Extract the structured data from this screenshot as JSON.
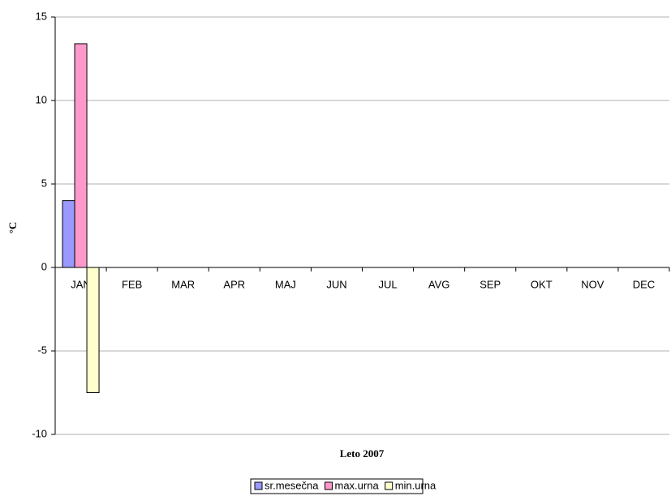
{
  "chart_data": {
    "type": "bar",
    "x_label": "Leto 2007",
    "y_label": "°C",
    "categories": [
      "JAN",
      "FEB",
      "MAR",
      "APR",
      "MAJ",
      "JUN",
      "JUL",
      "AVG",
      "SEP",
      "OKT",
      "NOV",
      "DEC"
    ],
    "series": [
      {
        "name": "sr.mesečna",
        "color": "#9999ff",
        "values": [
          4,
          null,
          null,
          null,
          null,
          null,
          null,
          null,
          null,
          null,
          null,
          null
        ]
      },
      {
        "name": "max.urna",
        "color": "#ff99cc",
        "values": [
          13.4,
          null,
          null,
          null,
          null,
          null,
          null,
          null,
          null,
          null,
          null,
          null
        ]
      },
      {
        "name": "min.urna",
        "color": "#ffffcc",
        "values": [
          -7.5,
          null,
          null,
          null,
          null,
          null,
          null,
          null,
          null,
          null,
          null,
          null
        ]
      }
    ],
    "ylim": [
      -10,
      15
    ],
    "yticks": [
      -10,
      -5,
      0,
      5,
      10,
      15
    ],
    "grid": true,
    "legend": "bottom"
  }
}
